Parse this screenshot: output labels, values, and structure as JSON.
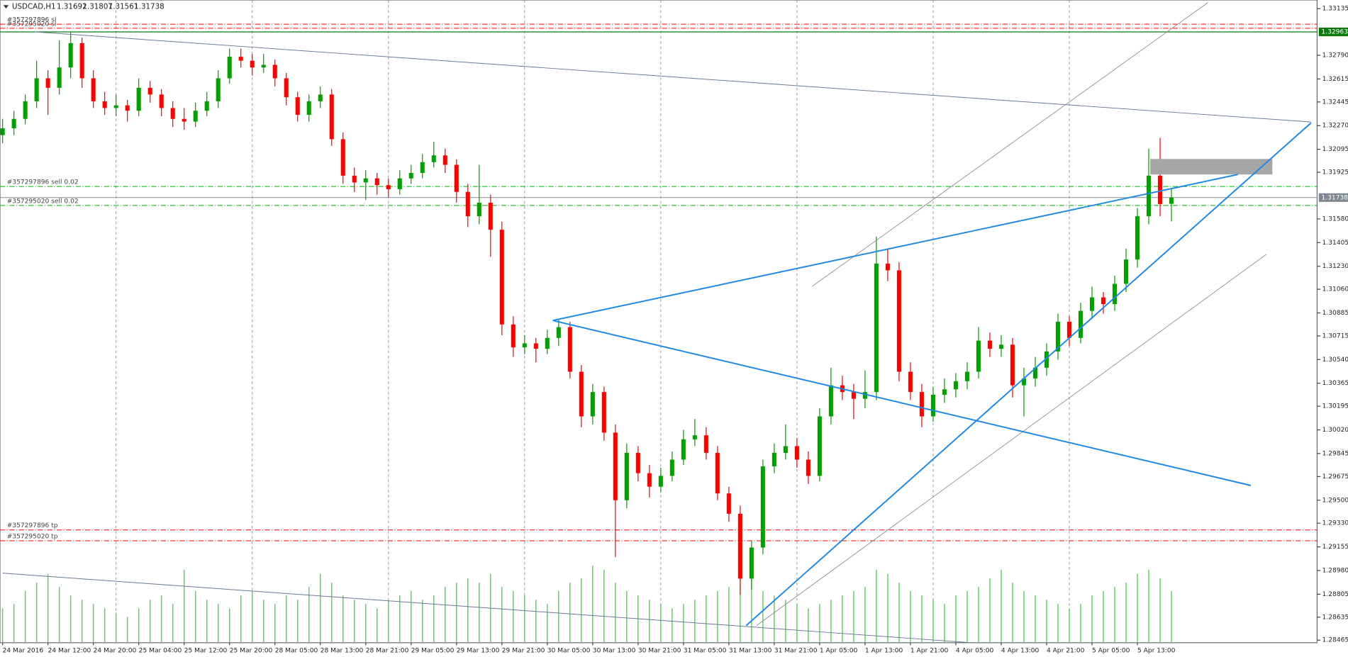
{
  "chart_data": {
    "type": "candlestick",
    "symbol": "USDCAD,H1",
    "ylim": [
      1.28446,
      1.33199
    ],
    "yticks": [
      1.33135,
      {
        "value": 1.3279,
        "label": "1.32790"
      },
      1.32615,
      1.32445,
      {
        "value": 1.3227,
        "label": "1.32270"
      },
      1.32095,
      1.31925,
      {
        "value": 1.3158,
        "label": "1.31580"
      },
      1.31405,
      {
        "value": 1.3123,
        "label": "1.31230"
      },
      {
        "value": 1.3106,
        "label": "1.31060"
      },
      1.30885,
      1.30715,
      {
        "value": 1.3054,
        "label": "1.30540"
      },
      1.30365,
      1.30195,
      {
        "value": 1.3002,
        "label": "1.30020"
      },
      1.29845,
      1.29675,
      {
        "value": 1.295,
        "label": "1.29500"
      },
      {
        "value": 1.2933,
        "label": "1.29330"
      },
      1.29155,
      {
        "value": 1.2898,
        "label": "1.28980"
      },
      1.28805,
      1.28635,
      1.28465
    ],
    "categories": [
      "24 Mar 2016",
      null,
      null,
      null,
      "24 Mar 12:00",
      null,
      null,
      null,
      "24 Mar 20:00",
      null,
      null,
      null,
      "25 Mar 04:00",
      null,
      null,
      null,
      "25 Mar 12:00",
      null,
      null,
      null,
      "25 Mar 20:00",
      null,
      null,
      null,
      "28 Mar 05:00",
      null,
      null,
      null,
      "28 Mar 13:00",
      null,
      null,
      null,
      "28 Mar 21:00",
      null,
      null,
      null,
      "29 Mar 05:00",
      null,
      null,
      null,
      "29 Mar 13:00",
      null,
      null,
      null,
      "29 Mar 21:00",
      null,
      null,
      null,
      "30 Mar 05:00",
      null,
      null,
      null,
      "30 Mar 13:00",
      null,
      null,
      null,
      "30 Mar 21:00",
      null,
      null,
      null,
      "31 Mar 05:00",
      null,
      null,
      null,
      "31 Mar 13:00",
      null,
      null,
      null,
      "31 Mar 21:00",
      null,
      null,
      null,
      "1 Apr 05:00",
      null,
      null,
      null,
      "1 Apr 13:00",
      null,
      null,
      null,
      "1 Apr 21:00",
      null,
      null,
      null,
      "4 Apr 05:00",
      null,
      null,
      null,
      "4 Apr 13:00",
      null,
      null,
      null,
      "4 Apr 21:00",
      null,
      null,
      null,
      "5 Apr 05:00",
      null,
      null,
      null,
      "5 Apr 13:00",
      null,
      null,
      null
    ],
    "candles": [
      [
        1.322,
        1.3232,
        1.3214,
        1.3225
      ],
      [
        1.3225,
        1.3238,
        1.322,
        1.3232
      ],
      [
        1.3232,
        1.325,
        1.3228,
        1.3245
      ],
      [
        1.3245,
        1.3275,
        1.324,
        1.3262
      ],
      [
        1.3262,
        1.3268,
        1.3235,
        1.3255
      ],
      [
        1.3255,
        1.329,
        1.325,
        1.327
      ],
      [
        1.327,
        1.3296,
        1.3262,
        1.3288
      ],
      [
        1.3288,
        1.3292,
        1.3255,
        1.3262
      ],
      [
        1.3262,
        1.3268,
        1.324,
        1.3245
      ],
      [
        1.3245,
        1.3252,
        1.3235,
        1.324
      ],
      [
        1.324,
        1.325,
        1.3234,
        1.3242
      ],
      [
        1.3242,
        1.3246,
        1.323,
        1.3238
      ],
      [
        1.3238,
        1.3262,
        1.3234,
        1.3255
      ],
      [
        1.3255,
        1.326,
        1.3244,
        1.325
      ],
      [
        1.325,
        1.3254,
        1.3234,
        1.324
      ],
      [
        1.324,
        1.3245,
        1.3226,
        1.3232
      ],
      [
        1.3232,
        1.324,
        1.3224,
        1.323
      ],
      [
        1.323,
        1.3244,
        1.3226,
        1.3238
      ],
      [
        1.3238,
        1.3252,
        1.3234,
        1.3245
      ],
      [
        1.3245,
        1.3268,
        1.324,
        1.3262
      ],
      [
        1.3262,
        1.3284,
        1.3258,
        1.3278
      ],
      [
        1.3278,
        1.3284,
        1.327,
        1.3275
      ],
      [
        1.3275,
        1.328,
        1.3264,
        1.327
      ],
      [
        1.327,
        1.328,
        1.3266,
        1.3272
      ],
      [
        1.3272,
        1.3276,
        1.3256,
        1.3262
      ],
      [
        1.3262,
        1.3266,
        1.3242,
        1.3248
      ],
      [
        1.3248,
        1.3252,
        1.323,
        1.3235
      ],
      [
        1.3235,
        1.325,
        1.323,
        1.3245
      ],
      [
        1.3245,
        1.3256,
        1.324,
        1.325
      ],
      [
        1.325,
        1.3254,
        1.3212,
        1.3217
      ],
      [
        1.3217,
        1.3222,
        1.3184,
        1.319
      ],
      [
        1.319,
        1.3196,
        1.3178,
        1.3185
      ],
      [
        1.3185,
        1.3194,
        1.3172,
        1.3188
      ],
      [
        1.3188,
        1.3192,
        1.3176,
        1.3183
      ],
      [
        1.3183,
        1.3188,
        1.3174,
        1.318
      ],
      [
        1.318,
        1.3194,
        1.3176,
        1.3188
      ],
      [
        1.3188,
        1.3198,
        1.3184,
        1.3192
      ],
      [
        1.3192,
        1.3206,
        1.3188,
        1.32
      ],
      [
        1.32,
        1.3215,
        1.3196,
        1.3205
      ],
      [
        1.3205,
        1.321,
        1.3192,
        1.3198
      ],
      [
        1.3198,
        1.3202,
        1.317,
        1.3178
      ],
      [
        1.3178,
        1.3184,
        1.3152,
        1.316
      ],
      [
        1.316,
        1.3198,
        1.3154,
        1.317
      ],
      [
        1.317,
        1.3176,
        1.313,
        1.315
      ],
      [
        1.315,
        1.3156,
        1.3072,
        1.308
      ],
      [
        1.308,
        1.3086,
        1.3056,
        1.3063
      ],
      [
        1.3063,
        1.3072,
        1.3058,
        1.3066
      ],
      [
        1.3066,
        1.307,
        1.3052,
        1.3062
      ],
      [
        1.3062,
        1.3076,
        1.3058,
        1.307
      ],
      [
        1.307,
        1.3084,
        1.3064,
        1.3078
      ],
      [
        1.3078,
        1.3082,
        1.304,
        1.3045
      ],
      [
        1.3045,
        1.305,
        1.3004,
        1.3012
      ],
      [
        1.3012,
        1.3036,
        1.3006,
        1.303
      ],
      [
        1.303,
        1.3034,
        1.2994,
        1.3
      ],
      [
        1.3,
        1.3006,
        1.2908,
        1.295
      ],
      [
        1.295,
        1.2992,
        1.2944,
        1.2985
      ],
      [
        1.2985,
        1.299,
        1.2964,
        1.297
      ],
      [
        1.297,
        1.2976,
        1.2952,
        1.296
      ],
      [
        1.296,
        1.2974,
        1.2956,
        1.2968
      ],
      [
        1.2968,
        1.2986,
        1.2964,
        1.298
      ],
      [
        1.298,
        1.3002,
        1.2976,
        1.2995
      ],
      [
        1.2995,
        1.301,
        1.299,
        1.2998
      ],
      [
        1.2998,
        1.3004,
        1.298,
        1.2985
      ],
      [
        1.2985,
        1.299,
        1.295,
        1.2955
      ],
      [
        1.2955,
        1.296,
        1.2934,
        1.294
      ],
      [
        1.294,
        1.2946,
        1.288,
        1.2892
      ],
      [
        1.2892,
        1.292,
        1.2884,
        1.2915
      ],
      [
        1.2915,
        1.298,
        1.291,
        1.2975
      ],
      [
        1.2975,
        1.2992,
        1.297,
        1.2985
      ],
      [
        1.2985,
        1.3006,
        1.298,
        1.299
      ],
      [
        1.299,
        1.2996,
        1.2974,
        1.298
      ],
      [
        1.298,
        1.2986,
        1.2962,
        1.2968
      ],
      [
        1.2968,
        1.3018,
        1.2964,
        1.3012
      ],
      [
        1.3012,
        1.3048,
        1.3006,
        1.3035
      ],
      [
        1.3035,
        1.3042,
        1.3024,
        1.303
      ],
      [
        1.303,
        1.3036,
        1.301,
        1.3025
      ],
      [
        1.3025,
        1.3046,
        1.3018,
        1.303
      ],
      [
        1.303,
        1.3145,
        1.3024,
        1.3125
      ],
      [
        1.3125,
        1.3136,
        1.3112,
        1.312
      ],
      [
        1.312,
        1.3126,
        1.3038,
        1.3045
      ],
      [
        1.3045,
        1.3052,
        1.3024,
        1.303
      ],
      [
        1.303,
        1.3036,
        1.3004,
        1.3012
      ],
      [
        1.3012,
        1.3034,
        1.3008,
        1.3028
      ],
      [
        1.3028,
        1.304,
        1.3022,
        1.3032
      ],
      [
        1.3032,
        1.3044,
        1.3026,
        1.3038
      ],
      [
        1.3038,
        1.3052,
        1.3032,
        1.3045
      ],
      [
        1.3045,
        1.3078,
        1.304,
        1.3068
      ],
      [
        1.3068,
        1.3074,
        1.3056,
        1.3062
      ],
      [
        1.3062,
        1.3072,
        1.3056,
        1.3065
      ],
      [
        1.3065,
        1.307,
        1.3026,
        1.3035
      ],
      [
        1.3035,
        1.3048,
        1.3012,
        1.304
      ],
      [
        1.304,
        1.3056,
        1.3034,
        1.3048
      ],
      [
        1.3048,
        1.3066,
        1.3042,
        1.306
      ],
      [
        1.306,
        1.3088,
        1.3054,
        1.3082
      ],
      [
        1.3082,
        1.3086,
        1.3064,
        1.307
      ],
      [
        1.307,
        1.3096,
        1.3066,
        1.309
      ],
      [
        1.309,
        1.3108,
        1.3084,
        1.31
      ],
      [
        1.31,
        1.3104,
        1.3088,
        1.3095
      ],
      [
        1.3095,
        1.3116,
        1.309,
        1.311
      ],
      [
        1.311,
        1.3136,
        1.3104,
        1.3128
      ],
      [
        1.3128,
        1.3166,
        1.3122,
        1.316
      ],
      [
        1.316,
        1.321,
        1.3154,
        1.319
      ],
      [
        1.319,
        1.3218,
        1.316,
        1.3169
      ],
      [
        1.31692,
        1.31807,
        1.31561,
        1.31738
      ]
    ],
    "volumes": [
      40,
      45,
      60,
      70,
      80,
      65,
      55,
      50,
      45,
      40,
      35,
      30,
      40,
      50,
      55,
      45,
      85,
      60,
      50,
      45,
      40,
      55,
      60,
      50,
      45,
      55,
      50,
      65,
      80,
      70,
      55,
      50,
      45,
      40,
      50,
      55,
      60,
      50,
      55,
      65,
      70,
      75,
      70,
      80,
      65,
      60,
      55,
      50,
      45,
      60,
      70,
      75,
      90,
      85,
      70,
      60,
      55,
      50,
      45,
      40,
      45,
      50,
      55,
      60,
      65,
      85,
      75,
      60,
      55,
      50,
      45,
      40,
      45,
      50,
      55,
      60,
      65,
      85,
      80,
      70,
      60,
      55,
      50,
      45,
      55,
      60,
      65,
      75,
      85,
      70,
      60,
      55,
      50,
      45,
      40,
      45,
      55,
      60,
      65,
      70,
      80,
      85,
      75,
      60
    ],
    "levels": [
      {
        "label": "#357297896 sl",
        "price": 1.3302,
        "color": "#ff0000"
      },
      {
        "label": "#357295020 sl",
        "price": 1.3299,
        "color": "#ff0000"
      },
      {
        "label": "#357297896 sell 0.02",
        "price": 1.3182,
        "color": "#00b000"
      },
      {
        "label": "#357295020 sell 0.02",
        "price": 1.3168,
        "color": "#00b000"
      },
      {
        "label": "#357297896 tp",
        "price": 1.2928,
        "color": "#ff0000"
      },
      {
        "label": "#357295020 tp",
        "price": 1.292,
        "color": "#ff0000"
      }
    ],
    "price_markers": [
      {
        "value": 1.32963,
        "color": "#0a7a0a"
      }
    ],
    "bull_color": "#00a000",
    "bear_color": "#ff0000",
    "volume_color": "#5ccf5c",
    "grid": true
  }
}
